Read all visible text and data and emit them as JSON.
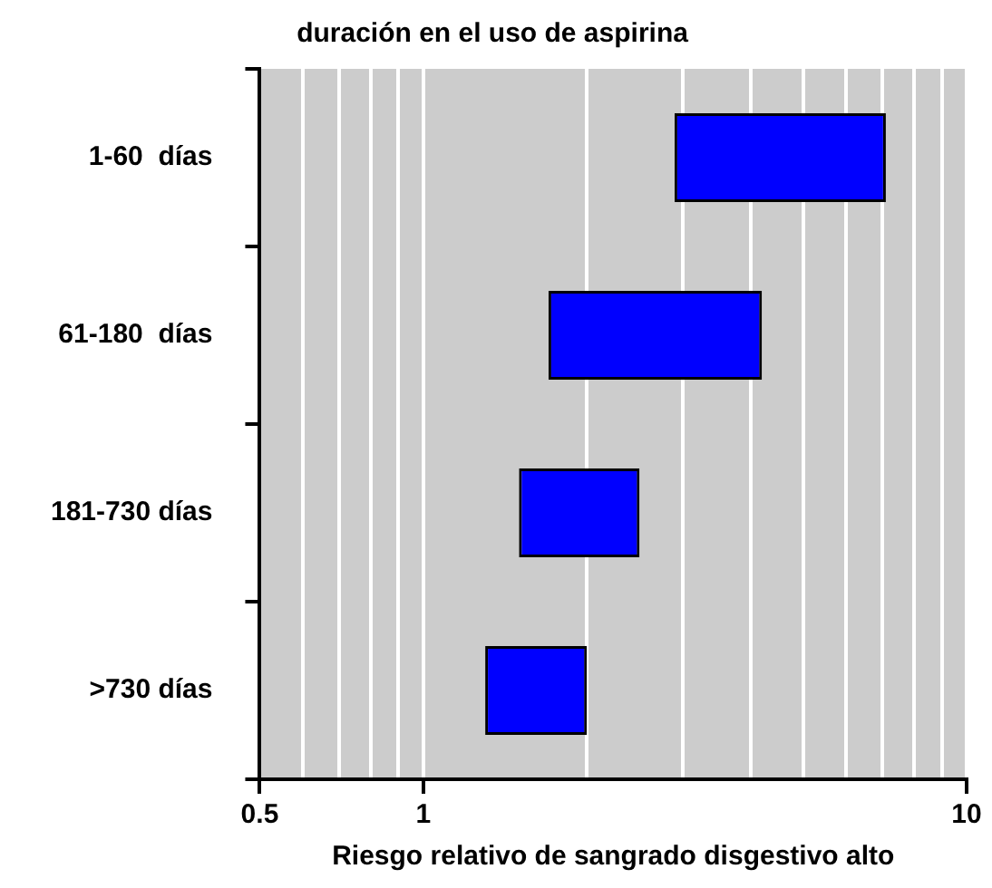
{
  "chart_data": {
    "type": "bar",
    "orientation": "horizontal",
    "title": "duración en el uso de aspirina",
    "xlabel": "Riesgo relativo de sangrado disgestivo alto",
    "categories": [
      "1-60  días",
      "61-180  días",
      "181-730 días",
      ">730 días"
    ],
    "base": [
      2.9,
      1.7,
      1.5,
      1.3
    ],
    "values": [
      4.2,
      2.5,
      1.0,
      0.7
    ],
    "color": "#0000ff",
    "log": "x",
    "xlim": [
      0.5,
      10
    ],
    "xticks": [
      {
        "value": 0.5,
        "label": "0.5"
      },
      {
        "value": 0.6,
        "label": null
      },
      {
        "value": 0.7,
        "label": null
      },
      {
        "value": 0.8,
        "label": null
      },
      {
        "value": 0.9,
        "label": null
      },
      1,
      {
        "value": 2,
        "label": null
      },
      {
        "value": 3,
        "label": null
      },
      {
        "value": 4,
        "label": null
      },
      {
        "value": 5,
        "label": null
      },
      {
        "value": 6,
        "label": null
      },
      {
        "value": 7,
        "label": null
      },
      {
        "value": 8,
        "label": null
      },
      {
        "value": 9,
        "label": null
      },
      10
    ],
    "grid": "x",
    "legend": false
  }
}
